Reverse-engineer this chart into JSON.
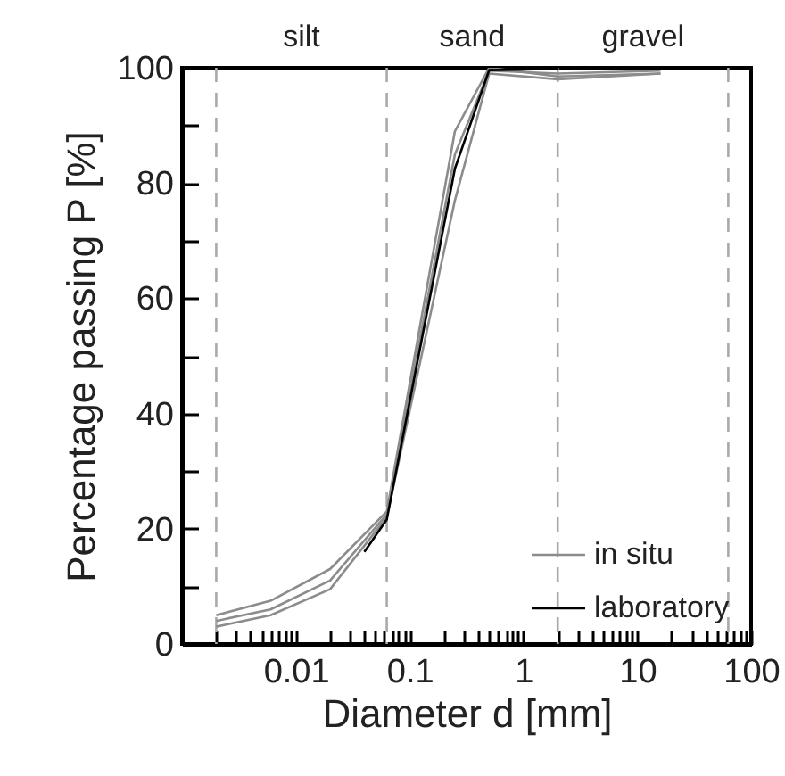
{
  "chart_data": {
    "type": "line",
    "xlabel": "Diameter d [mm]",
    "ylabel": "Percentage passing P [%]",
    "log": "x",
    "xlim": [
      0.001,
      100
    ],
    "ylim": [
      0,
      100
    ],
    "xticks": [
      {
        "value": 0.001,
        "label": null
      },
      {
        "value": 0.002,
        "label": null
      },
      {
        "value": 0.003,
        "label": null
      },
      {
        "value": 0.004,
        "label": null
      },
      {
        "value": 0.005,
        "label": null
      },
      {
        "value": 0.006,
        "label": null
      },
      {
        "value": 0.007,
        "label": null
      },
      {
        "value": 0.008,
        "label": null
      },
      {
        "value": 0.009,
        "label": null
      },
      0.01,
      {
        "value": 0.02,
        "label": null
      },
      {
        "value": 0.03,
        "label": null
      },
      {
        "value": 0.04,
        "label": null
      },
      {
        "value": 0.05,
        "label": null
      },
      {
        "value": 0.06,
        "label": null
      },
      {
        "value": 0.07,
        "label": null
      },
      {
        "value": 0.08,
        "label": null
      },
      {
        "value": 0.09,
        "label": null
      },
      0.1,
      {
        "value": 0.2,
        "label": null
      },
      {
        "value": 0.3,
        "label": null
      },
      {
        "value": 0.4,
        "label": null
      },
      {
        "value": 0.5,
        "label": null
      },
      {
        "value": 0.6,
        "label": null
      },
      {
        "value": 0.7,
        "label": null
      },
      {
        "value": 0.8,
        "label": null
      },
      {
        "value": 0.9,
        "label": null
      },
      1,
      {
        "value": 2,
        "label": null
      },
      {
        "value": 3,
        "label": null
      },
      {
        "value": 4,
        "label": null
      },
      {
        "value": 5,
        "label": null
      },
      {
        "value": 6,
        "label": null
      },
      {
        "value": 7,
        "label": null
      },
      {
        "value": 8,
        "label": null
      },
      {
        "value": 9,
        "label": null
      },
      10,
      {
        "value": 20,
        "label": null
      },
      {
        "value": 30,
        "label": null
      },
      {
        "value": 40,
        "label": null
      },
      {
        "value": 50,
        "label": null
      },
      {
        "value": 60,
        "label": null
      },
      {
        "value": 70,
        "label": null
      },
      {
        "value": 80,
        "label": null
      },
      {
        "value": 90,
        "label": null
      },
      100
    ],
    "yticks": [
      0,
      {
        "value": 10,
        "label": null
      },
      20,
      {
        "value": 30,
        "label": null
      },
      40,
      {
        "value": 50,
        "label": null
      },
      60,
      {
        "value": 70,
        "label": null
      },
      80,
      {
        "value": 90,
        "label": null
      },
      100
    ],
    "grid": false,
    "legend": "bottom right",
    "marker": "none",
    "line_style": "solid",
    "series": [
      {
        "name": "in situ",
        "color": "#8c8c8c",
        "x": [
          0.002,
          0.006,
          0.02,
          0.063,
          0.25,
          0.5,
          2,
          16
        ],
        "values": [
          5,
          7.5,
          13,
          23,
          89,
          100,
          98.5,
          99
        ]
      },
      {
        "color": "#8c8c8c",
        "x": [
          0.002,
          0.006,
          0.02,
          0.063,
          0.25,
          0.5,
          2,
          16
        ],
        "values": [
          3,
          5,
          9.5,
          22,
          77,
          99,
          98,
          99
        ]
      },
      {
        "color": "#8c8c8c",
        "x": [
          0.002,
          0.006,
          0.02,
          0.063,
          0.25,
          0.5,
          2,
          16
        ],
        "values": [
          4,
          6,
          11,
          22.5,
          85,
          99.5,
          99,
          99.5
        ]
      },
      {
        "name": "laboratory",
        "color": "#000000",
        "x": [
          0.04,
          0.063,
          0.25,
          0.5,
          2
        ],
        "values": [
          16,
          21.6,
          82.5,
          99.6,
          99.8
        ]
      }
    ],
    "ref_lines": [
      {
        "axis": "x",
        "value": 0.002,
        "color": "#aaaaaa",
        "line_style": "dashed"
      },
      {
        "axis": "x",
        "value": 0.063,
        "color": "#aaaaaa",
        "line_style": "dashed"
      },
      {
        "axis": "x",
        "value": 2,
        "color": "#aaaaaa",
        "line_style": "dashed"
      },
      {
        "axis": "x",
        "value": 63,
        "color": "#aaaaaa",
        "line_style": "dashed"
      }
    ],
    "annotations": [
      "silt",
      "sand",
      "gravel"
    ]
  }
}
